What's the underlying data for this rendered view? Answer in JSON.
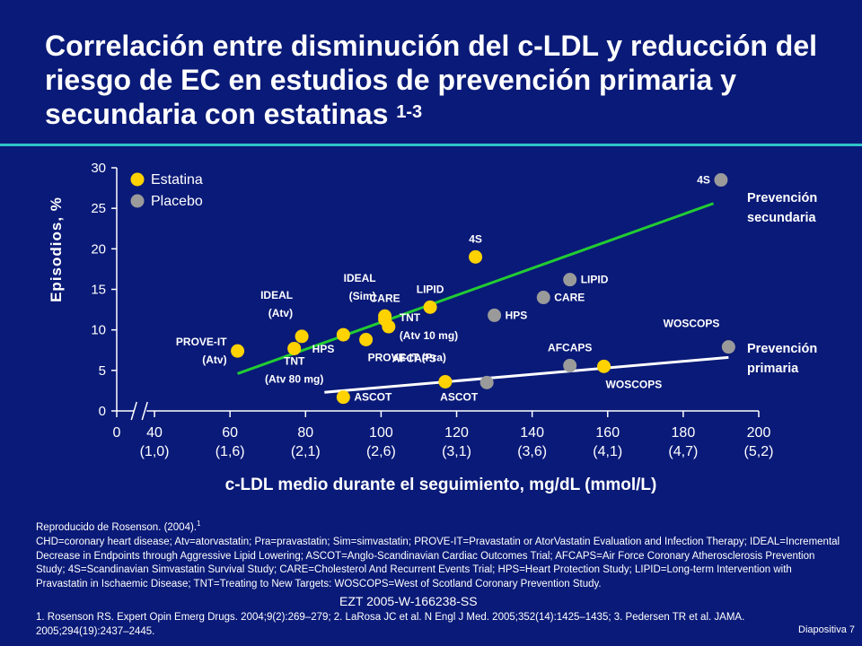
{
  "title": {
    "text": "Correlación entre disminución del c-LDL y reducción del riesgo de EC en estudios de prevención primaria y secundaria con estatinas",
    "sup": "1-3"
  },
  "footer": {
    "reproduced": "Reproducido de Rosenson. (2004).",
    "reproduced_sup": "1",
    "abbreviations": "CHD=coronary heart disease; Atv=atorvastatin; Pra=pravastatin; Sim=simvastatin; PROVE-IT=Pravastatin or AtorVastatin Evaluation and Infection Therapy; IDEAL=Incremental Decrease in Endpoints through Aggressive Lipid Lowering; ASCOT=Anglo-Scandinavian Cardiac Outcomes Trial; AFCAPS=Air Force Coronary Atherosclerosis Prevention Study; 4S=Scandinavian Simvastatin Survival Study; CARE=Cholesterol And Recurrent Events Trial; HPS=Heart Protection Study; LIPID=Long-term Intervention with Pravastatin in Ischaemic Disease; TNT=Treating to New Targets: WOSCOPS=West of Scotland Coronary Prevention Study.",
    "code": "EZT 2005-W-166238-SS",
    "references": "1. Rosenson RS. Expert Opin Emerg Drugs. 2004;9(2):269–279; 2. LaRosa JC et al. N Engl J Med. 2005;352(14):1425–1435; 3. Pedersen TR et al. JAMA. 2005;294(19):2437–2445.",
    "slide": "Diapositiva 7"
  },
  "colors": {
    "background": "#0a1a78",
    "estatina": "#ffd200",
    "placebo": "#9a9a9a",
    "secondary_line": "#22cc33",
    "primary_line": "#ffffff",
    "rule": "#2ec4c8"
  },
  "chart_data": {
    "type": "scatter",
    "xlabel": "c-LDL medio durante el seguimiento, mg/dL (mmol/L)",
    "ylabel": "Episodios, %",
    "xlim": [
      30,
      200
    ],
    "ylim": [
      0,
      30
    ],
    "x_break": true,
    "x_ticks": [
      {
        "value": 30,
        "label": "0",
        "sub": ""
      },
      {
        "value": 40,
        "label": "40",
        "sub": "(1,0)"
      },
      {
        "value": 60,
        "label": "60",
        "sub": "(1,6)"
      },
      {
        "value": 80,
        "label": "80",
        "sub": "(2,1)"
      },
      {
        "value": 100,
        "label": "100",
        "sub": "(2,6)"
      },
      {
        "value": 120,
        "label": "120",
        "sub": "(3,1)"
      },
      {
        "value": 140,
        "label": "140",
        "sub": "(3,6)"
      },
      {
        "value": 160,
        "label": "160",
        "sub": "(4,1)"
      },
      {
        "value": 180,
        "label": "180",
        "sub": "(4,7)"
      },
      {
        "value": 200,
        "label": "200",
        "sub": "(5,2)"
      }
    ],
    "y_ticks": [
      0,
      5,
      10,
      15,
      20,
      25,
      30
    ],
    "legend": {
      "position": "top-left",
      "entries": [
        {
          "name": "Estatina",
          "color": "#ffd200"
        },
        {
          "name": "Placebo",
          "color": "#9a9a9a"
        }
      ]
    },
    "series": [
      {
        "name": "Estatina",
        "color": "#ffd200",
        "points": [
          {
            "x": 62,
            "y": 7.4,
            "label": [
              "PROVE-IT",
              "(Atv)"
            ],
            "label_pos": "left"
          },
          {
            "x": 79,
            "y": 9.2,
            "label": [
              "IDEAL",
              "(Atv)"
            ],
            "label_pos": "above-left"
          },
          {
            "x": 77,
            "y": 7.7,
            "label": [
              "TNT",
              "(Atv 80 mg)"
            ],
            "label_pos": "below"
          },
          {
            "x": 90,
            "y": 9.4,
            "label": [
              "HPS"
            ],
            "label_pos": "below-left"
          },
          {
            "x": 101,
            "y": 11.3,
            "label": [
              "IDEAL",
              "(Sim)"
            ],
            "label_pos": "above-left"
          },
          {
            "x": 102,
            "y": 10.4,
            "label": [
              "TNT",
              "(Atv 10 mg)"
            ],
            "label_pos": "right"
          },
          {
            "x": 96,
            "y": 8.8,
            "label": [
              "PROVE-IT (Pra)"
            ],
            "label_pos": "below-right"
          },
          {
            "x": 101,
            "y": 11.7,
            "label": [
              "CARE"
            ],
            "label_pos": "above"
          },
          {
            "x": 113,
            "y": 12.8,
            "label": [
              "LIPID"
            ],
            "label_pos": "above"
          },
          {
            "x": 125,
            "y": 19.0,
            "label": [
              "4S"
            ],
            "label_pos": "above"
          },
          {
            "x": 117,
            "y": 3.6,
            "label": [
              "AFCAPS"
            ],
            "label_pos": "above-left"
          },
          {
            "x": 90,
            "y": 1.7,
            "label": [
              "ASCOT"
            ],
            "label_pos": "right"
          },
          {
            "x": 159,
            "y": 5.5,
            "label": [
              "WOSCOPS"
            ],
            "label_pos": "below-right"
          }
        ]
      },
      {
        "name": "Placebo",
        "color": "#9a9a9a",
        "points": [
          {
            "x": 190,
            "y": 28.5,
            "label": [
              "4S"
            ],
            "label_pos": "left"
          },
          {
            "x": 150,
            "y": 16.2,
            "label": [
              "LIPID"
            ],
            "label_pos": "right"
          },
          {
            "x": 143,
            "y": 14.0,
            "label": [
              "CARE"
            ],
            "label_pos": "right"
          },
          {
            "x": 130,
            "y": 11.8,
            "label": [
              "HPS"
            ],
            "label_pos": "right"
          },
          {
            "x": 150,
            "y": 5.6,
            "label": [
              "AFCAPS"
            ],
            "label_pos": "above"
          },
          {
            "x": 192,
            "y": 7.9,
            "label": [
              "WOSCOPS"
            ],
            "label_pos": "above-left"
          },
          {
            "x": 128,
            "y": 3.5,
            "label": [
              "ASCOT"
            ],
            "label_pos": "below-left"
          }
        ]
      }
    ],
    "lines": [
      {
        "name": "Prevención secundaria",
        "label": [
          "Prevención",
          "secundaria"
        ],
        "x": [
          62,
          188
        ],
        "y": [
          4.6,
          25.6
        ],
        "color": "#22cc33"
      },
      {
        "name": "Prevención primaria",
        "label": [
          "Prevención",
          "primaria"
        ],
        "x": [
          85,
          192
        ],
        "y": [
          2.3,
          6.6
        ],
        "color": "#ffffff"
      }
    ]
  }
}
